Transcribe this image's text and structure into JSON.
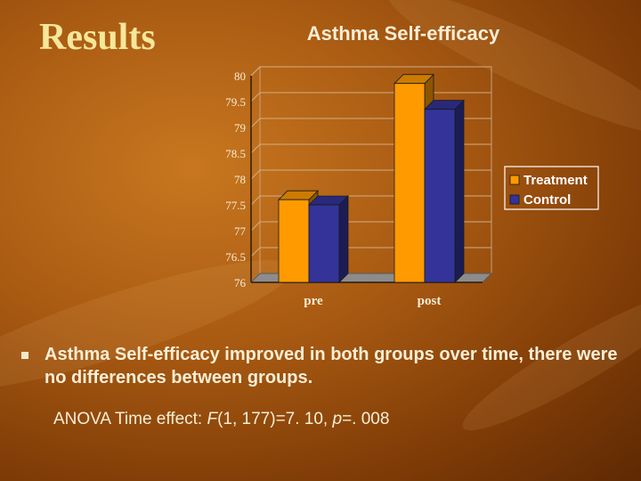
{
  "slide": {
    "title": "Results",
    "bullet": "Asthma Self-efficacy improved in both groups over time, there were no differences between groups.",
    "stat_line": {
      "prefix": "ANOVA Time effect: ",
      "F": "F",
      "df": "(1, 177)=7. 10, ",
      "p": "p",
      "p_value": "=. 008"
    }
  },
  "chart_data": {
    "type": "bar",
    "title": "Asthma Self-efficacy",
    "categories": [
      "pre",
      "post"
    ],
    "series": [
      {
        "name": "Treatment",
        "values": [
          77.6,
          79.85
        ],
        "color": "#ff9a00"
      },
      {
        "name": "Control",
        "values": [
          77.5,
          79.35
        ],
        "color": "#33339a"
      }
    ],
    "ylim": [
      76,
      80
    ],
    "yticks": [
      "80",
      "79.5",
      "79",
      "78.5",
      "78",
      "77.5",
      "77",
      "76.5",
      "76"
    ],
    "grid": true,
    "legend": "right",
    "three_d": true,
    "colors": {
      "plot_floor": "#8c8c8c",
      "plot_walls": "#c0c0c0",
      "legend_bg": "#ffffff"
    }
  }
}
